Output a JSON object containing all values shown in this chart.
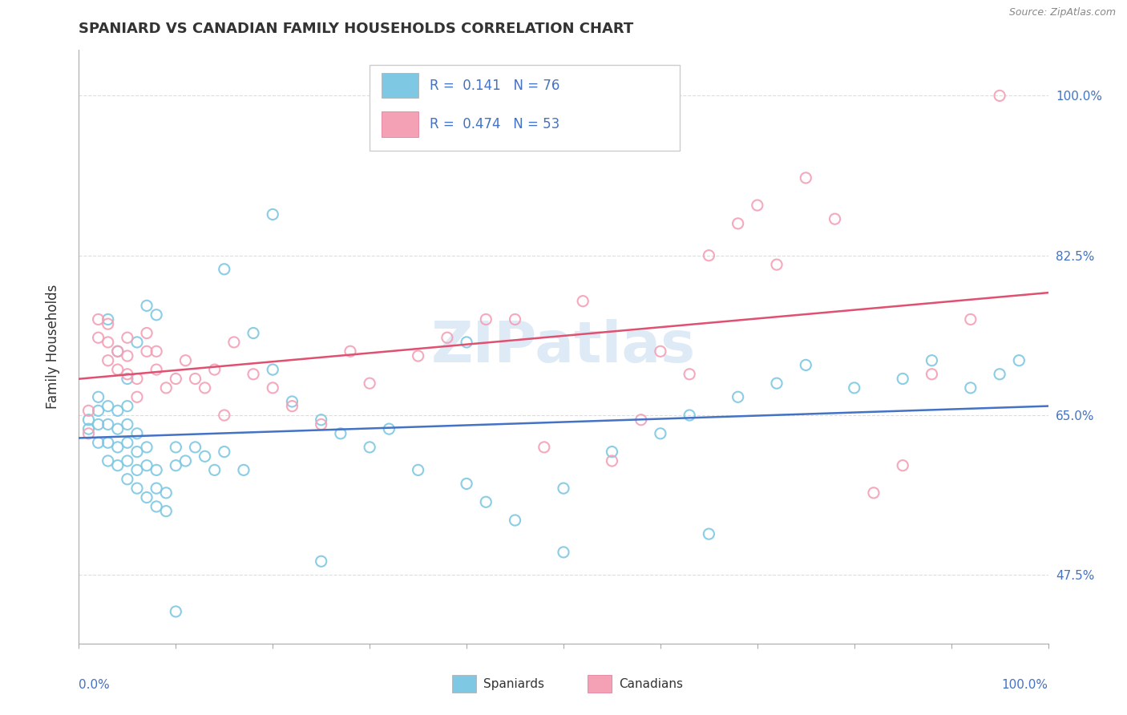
{
  "title": "SPANIARD VS CANADIAN FAMILY HOUSEHOLDS CORRELATION CHART",
  "source": "Source: ZipAtlas.com",
  "ylabel": "Family Households",
  "yticks": [
    "47.5%",
    "65.0%",
    "82.5%",
    "100.0%"
  ],
  "ytick_vals": [
    0.475,
    0.65,
    0.825,
    1.0
  ],
  "xlim": [
    0.0,
    1.0
  ],
  "ylim": [
    0.4,
    1.05
  ],
  "legend_r_blue": "0.141",
  "legend_n_blue": "76",
  "legend_r_pink": "0.474",
  "legend_n_pink": "53",
  "color_blue": "#7ec8e3",
  "color_pink": "#f4a0b5",
  "color_blue_line": "#4472c4",
  "color_pink_line": "#e05070",
  "watermark": "ZIPatlas",
  "blue_x": [
    0.01,
    0.01,
    0.02,
    0.02,
    0.02,
    0.02,
    0.03,
    0.03,
    0.03,
    0.03,
    0.04,
    0.04,
    0.04,
    0.04,
    0.05,
    0.05,
    0.05,
    0.05,
    0.05,
    0.06,
    0.06,
    0.06,
    0.06,
    0.07,
    0.07,
    0.07,
    0.08,
    0.08,
    0.08,
    0.09,
    0.09,
    0.1,
    0.1,
    0.11,
    0.12,
    0.13,
    0.14,
    0.15,
    0.17,
    0.18,
    0.2,
    0.22,
    0.25,
    0.27,
    0.3,
    0.35,
    0.4,
    0.42,
    0.45,
    0.5,
    0.55,
    0.6,
    0.63,
    0.68,
    0.72,
    0.75,
    0.8,
    0.85,
    0.88,
    0.92,
    0.95,
    0.32,
    0.5,
    0.65,
    0.4,
    0.2,
    0.15,
    0.08,
    0.07,
    0.06,
    0.05,
    0.04,
    0.03,
    0.1,
    0.25,
    0.97
  ],
  "blue_y": [
    0.635,
    0.645,
    0.62,
    0.64,
    0.655,
    0.67,
    0.6,
    0.62,
    0.64,
    0.66,
    0.595,
    0.615,
    0.635,
    0.655,
    0.58,
    0.6,
    0.62,
    0.64,
    0.66,
    0.57,
    0.59,
    0.61,
    0.63,
    0.56,
    0.595,
    0.615,
    0.55,
    0.57,
    0.59,
    0.545,
    0.565,
    0.595,
    0.615,
    0.6,
    0.615,
    0.605,
    0.59,
    0.61,
    0.59,
    0.74,
    0.7,
    0.665,
    0.645,
    0.63,
    0.615,
    0.59,
    0.575,
    0.555,
    0.535,
    0.57,
    0.61,
    0.63,
    0.65,
    0.67,
    0.685,
    0.705,
    0.68,
    0.69,
    0.71,
    0.68,
    0.695,
    0.635,
    0.5,
    0.52,
    0.73,
    0.87,
    0.81,
    0.76,
    0.77,
    0.73,
    0.69,
    0.72,
    0.755,
    0.435,
    0.49,
    0.71
  ],
  "pink_x": [
    0.01,
    0.01,
    0.02,
    0.02,
    0.03,
    0.03,
    0.03,
    0.04,
    0.04,
    0.05,
    0.05,
    0.05,
    0.06,
    0.06,
    0.07,
    0.07,
    0.08,
    0.08,
    0.09,
    0.1,
    0.11,
    0.12,
    0.13,
    0.14,
    0.15,
    0.16,
    0.18,
    0.2,
    0.22,
    0.25,
    0.28,
    0.3,
    0.35,
    0.38,
    0.42,
    0.45,
    0.48,
    0.52,
    0.55,
    0.58,
    0.6,
    0.63,
    0.65,
    0.68,
    0.7,
    0.72,
    0.75,
    0.78,
    0.82,
    0.85,
    0.88,
    0.92,
    0.95
  ],
  "pink_y": [
    0.63,
    0.655,
    0.735,
    0.755,
    0.71,
    0.73,
    0.75,
    0.7,
    0.72,
    0.695,
    0.715,
    0.735,
    0.67,
    0.69,
    0.72,
    0.74,
    0.7,
    0.72,
    0.68,
    0.69,
    0.71,
    0.69,
    0.68,
    0.7,
    0.65,
    0.73,
    0.695,
    0.68,
    0.66,
    0.64,
    0.72,
    0.685,
    0.715,
    0.735,
    0.755,
    0.755,
    0.615,
    0.775,
    0.6,
    0.645,
    0.72,
    0.695,
    0.825,
    0.86,
    0.88,
    0.815,
    0.91,
    0.865,
    0.565,
    0.595,
    0.695,
    0.755,
    1.0
  ]
}
